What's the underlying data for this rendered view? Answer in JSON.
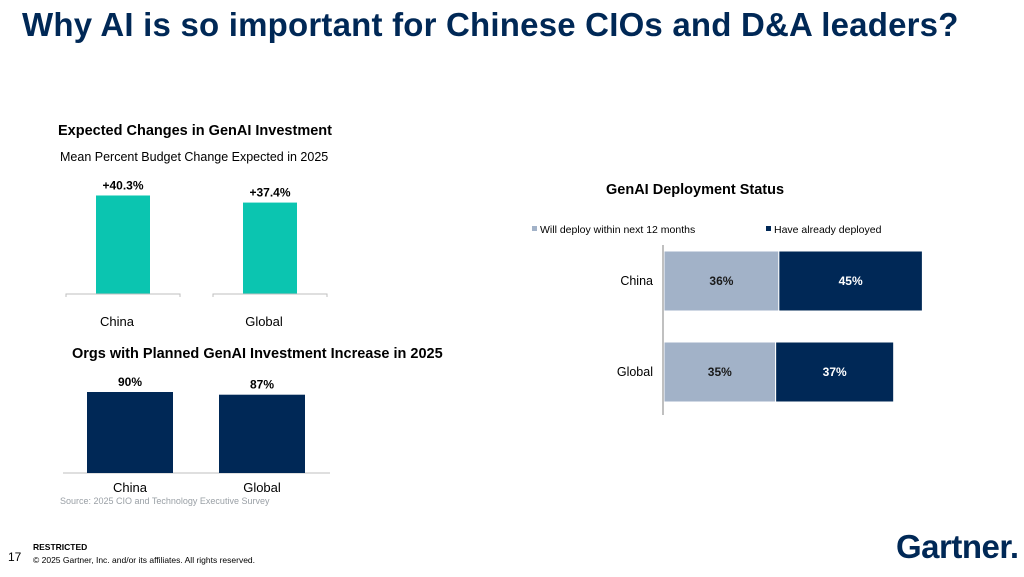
{
  "slide": {
    "title": "Why AI is so important for Chinese CIOs and D&A leaders?",
    "page_number": "17",
    "restricted": "RESTRICTED",
    "copyright": "© 2025 Gartner, Inc. and/or its affiliates. All rights reserved.",
    "source": "Source: 2025 CIO and Technology Executive Survey",
    "logo_text": "Gartner"
  },
  "colors": {
    "teal": "#0BC5B0",
    "navy": "#002856",
    "light_blue": "#A2B2C8",
    "title_navy": "#002856"
  },
  "chart_data": [
    {
      "type": "bar",
      "title": "Expected Changes in GenAI Investment",
      "subtitle": "Mean Percent Budget Change Expected in 2025",
      "categories": [
        "China",
        "Global"
      ],
      "values": [
        40.3,
        37.4
      ],
      "value_labels": [
        "+40.3%",
        "+37.4%"
      ],
      "ylim": [
        0,
        45
      ],
      "color": "#0BC5B0"
    },
    {
      "type": "bar",
      "title": "Orgs with Planned GenAI Investment Increase in 2025",
      "categories": [
        "China",
        "Global"
      ],
      "values": [
        90,
        87
      ],
      "value_labels": [
        "90%",
        "87%"
      ],
      "ylim": [
        0,
        100
      ],
      "color": "#002856"
    },
    {
      "type": "bar",
      "orientation": "horizontal",
      "stacked": true,
      "title": "GenAI Deployment Status",
      "categories": [
        "China",
        "Global"
      ],
      "legend_position": "top",
      "series": [
        {
          "name": "Will deploy within next 12 months",
          "values": [
            36,
            35
          ],
          "labels": [
            "36%",
            "35%"
          ],
          "color": "#A2B2C8"
        },
        {
          "name": "Have already deployed",
          "values": [
            45,
            37
          ],
          "labels": [
            "45%",
            "37%"
          ],
          "color": "#002856"
        }
      ],
      "xlim": [
        0,
        100
      ]
    }
  ]
}
